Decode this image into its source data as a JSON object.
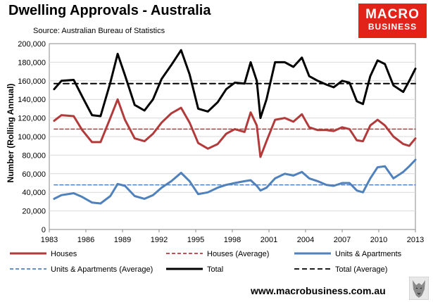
{
  "title": "Dwelling Approvals - Australia",
  "subtitle": "Source: Australian Bureau of Statistics",
  "logo": {
    "line1": "MACRO",
    "line2": "BUSINESS",
    "color": "#e2231a"
  },
  "website": "www.macrobusiness.com.au",
  "chart_data": {
    "type": "line",
    "ylabel": "Number (Rolling Annual)",
    "xlim": [
      1983,
      2013
    ],
    "ylim": [
      0,
      200000
    ],
    "xticks": [
      "1983",
      "1986",
      "1989",
      "1992",
      "1995",
      "1998",
      "2001",
      "2004",
      "2007",
      "2010",
      "2013"
    ],
    "yticks": [
      "0",
      "20,000",
      "40,000",
      "60,000",
      "80,000",
      "100,000",
      "120,000",
      "140,000",
      "160,000",
      "180,000",
      "200,000"
    ],
    "grid": true,
    "legend_position": "bottom",
    "series": [
      {
        "name": "Houses",
        "color": "#b33a3a",
        "style": "solid",
        "x": [
          1983.4,
          1984,
          1985,
          1985.7,
          1986.5,
          1987.2,
          1988,
          1988.6,
          1989.2,
          1990,
          1990.8,
          1991.5,
          1992.2,
          1993,
          1993.8,
          1994.5,
          1995.2,
          1996,
          1996.8,
          1997.5,
          1998.2,
          1999,
          1999.5,
          2000,
          2000.3,
          2000.8,
          2001.5,
          2002.3,
          2003,
          2003.7,
          2004.3,
          2005,
          2005.7,
          2006.3,
          2007,
          2007.6,
          2008.2,
          2008.7,
          2009.3,
          2009.9,
          2010.5,
          2011.2,
          2012,
          2012.5,
          2013
        ],
        "values": [
          117000,
          123000,
          122000,
          107000,
          94000,
          94000,
          120000,
          140000,
          118000,
          98000,
          95000,
          103000,
          115000,
          125000,
          131000,
          115000,
          93000,
          87000,
          92000,
          103000,
          108000,
          105000,
          126000,
          112000,
          78000,
          95000,
          118000,
          120000,
          116000,
          124000,
          110000,
          107000,
          107000,
          106000,
          110000,
          108000,
          96000,
          95000,
          112000,
          118000,
          112000,
          100000,
          92000,
          90000,
          98000
        ]
      },
      {
        "name": "Houses (Average)",
        "color": "#b33a3a",
        "style": "dashed",
        "x": [
          1983.4,
          2013
        ],
        "values": [
          108000,
          108000
        ]
      },
      {
        "name": "Units & Apartments",
        "color": "#4f81bd",
        "style": "solid",
        "x": [
          1983.4,
          1984,
          1985,
          1985.7,
          1986.5,
          1987.2,
          1988,
          1988.6,
          1989.2,
          1990,
          1990.8,
          1991.5,
          1992.2,
          1993,
          1993.8,
          1994.5,
          1995.2,
          1996,
          1996.8,
          1997.5,
          1998.2,
          1999,
          1999.5,
          2000,
          2000.3,
          2000.8,
          2001.5,
          2002.3,
          2003,
          2003.7,
          2004.3,
          2005,
          2005.7,
          2006.3,
          2007,
          2007.6,
          2008.2,
          2008.7,
          2009.3,
          2009.9,
          2010.5,
          2011.2,
          2012,
          2012.5,
          2013
        ],
        "values": [
          33000,
          37000,
          39000,
          35000,
          29000,
          28000,
          36000,
          49000,
          47000,
          36000,
          33000,
          37000,
          45000,
          52000,
          61000,
          52000,
          38000,
          40000,
          45000,
          48000,
          50000,
          52000,
          53000,
          47000,
          42000,
          45000,
          55000,
          60000,
          58000,
          62000,
          55000,
          52000,
          48000,
          47000,
          50000,
          50000,
          42000,
          40000,
          55000,
          67000,
          68000,
          55000,
          62000,
          68000,
          75000
        ]
      },
      {
        "name": "Units & Apartments (Average)",
        "color": "#4f81bd",
        "style": "dashed",
        "x": [
          1983.4,
          2013
        ],
        "values": [
          48000,
          48000
        ]
      },
      {
        "name": "Total",
        "color": "#000000",
        "style": "solid",
        "x": [
          1983.4,
          1984,
          1985,
          1985.7,
          1986.5,
          1987.2,
          1988,
          1988.6,
          1989.2,
          1990,
          1990.8,
          1991.5,
          1992.2,
          1993,
          1993.8,
          1994.5,
          1995.2,
          1996,
          1996.8,
          1997.5,
          1998.2,
          1999,
          1999.5,
          2000,
          2000.3,
          2000.8,
          2001.5,
          2002.3,
          2003,
          2003.7,
          2004.3,
          2005,
          2005.7,
          2006.3,
          2007,
          2007.6,
          2008.2,
          2008.7,
          2009.3,
          2009.9,
          2010.5,
          2011.2,
          2012,
          2012.5,
          2013
        ],
        "values": [
          151000,
          160000,
          161000,
          143000,
          123000,
          122000,
          158000,
          189000,
          166000,
          134000,
          128000,
          140000,
          162000,
          177000,
          193000,
          167000,
          130000,
          127000,
          137000,
          151000,
          158000,
          157000,
          180000,
          160000,
          120000,
          140000,
          180000,
          180000,
          175000,
          185000,
          165000,
          160000,
          156000,
          153000,
          160000,
          158000,
          138000,
          135000,
          165000,
          182000,
          178000,
          155000,
          148000,
          160000,
          173000
        ]
      },
      {
        "name": "Total (Average)",
        "color": "#000000",
        "style": "dashed",
        "x": [
          1983.4,
          2013
        ],
        "values": [
          157000,
          157000
        ]
      }
    ]
  }
}
